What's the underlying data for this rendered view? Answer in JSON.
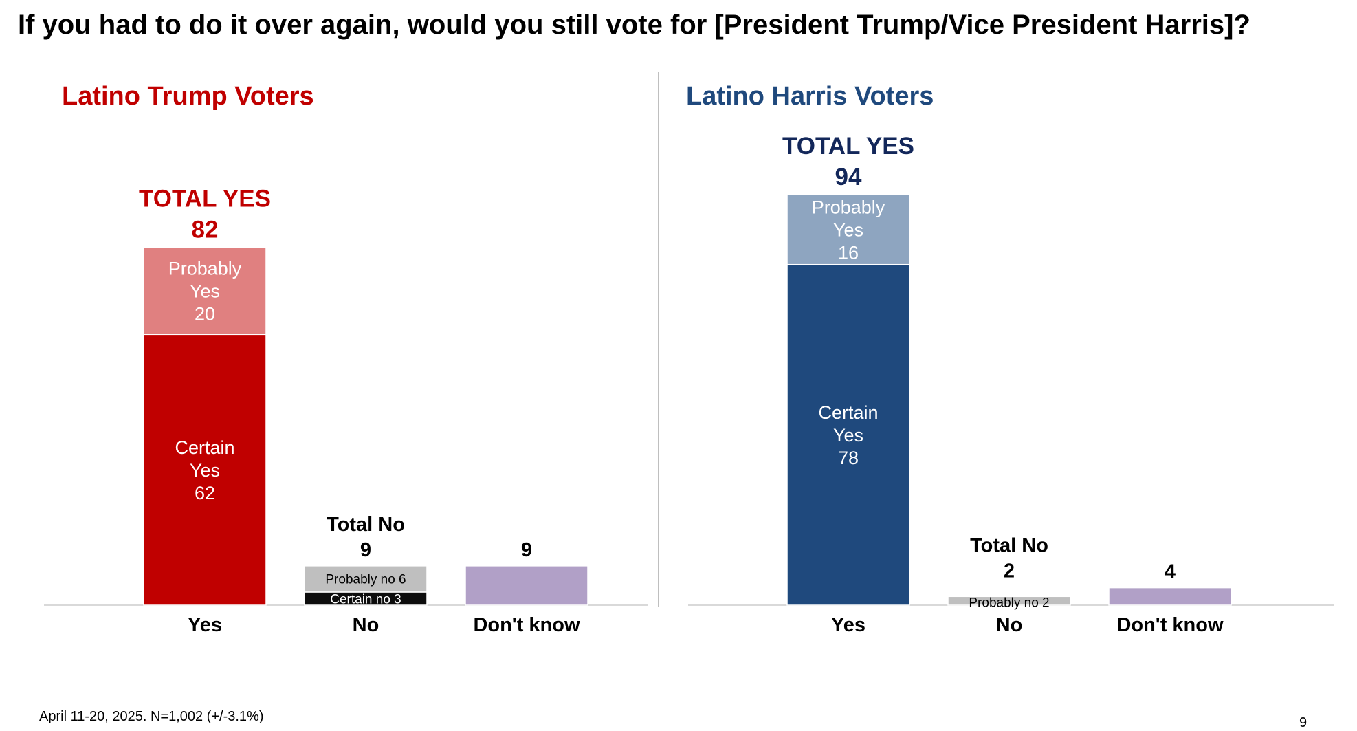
{
  "title": "If you had to do it over again, would you still vote for [President Trump/Vice President Harris]?",
  "footer": "April 11-20, 2025. N=1,002 (+/-3.1%)",
  "page_number": "9",
  "chart_data": [
    {
      "type": "bar",
      "panel": "left",
      "title": "Latino Trump Voters",
      "title_color": "#c00000",
      "total_color": "#c00000",
      "categories": [
        "Yes",
        "No",
        "Don't know"
      ],
      "ylim": [
        0,
        100
      ],
      "bars": [
        {
          "category": "Yes",
          "top_label_lines": [
            "TOTAL YES",
            "82"
          ],
          "segments": [
            {
              "name": "Certain Yes",
              "label_lines": [
                "Certain",
                "Yes",
                "62"
              ],
              "value": 62,
              "color": "#c00000",
              "text_color": "#ffffff",
              "label_mode": "inside"
            },
            {
              "name": "Probably Yes",
              "label_lines": [
                "Probably",
                "Yes",
                "20"
              ],
              "value": 20,
              "color": "#e08080",
              "text_color": "#ffffff",
              "label_mode": "inside"
            }
          ]
        },
        {
          "category": "No",
          "top_label_lines": [
            "Total No",
            "9"
          ],
          "segments": [
            {
              "name": "Certain no",
              "label_lines": [
                "Certain no 3"
              ],
              "value": 3,
              "color": "#0d0d0d",
              "text_color": "#ffffff",
              "label_mode": "inside"
            },
            {
              "name": "Probably no",
              "label_lines": [
                "Probably no 6"
              ],
              "value": 6,
              "color": "#bfbfbf",
              "text_color": "#000000",
              "label_mode": "inside"
            }
          ]
        },
        {
          "category": "Don't know",
          "top_label_lines": [
            "9"
          ],
          "segments": [
            {
              "name": "Don't know",
              "label_lines": [],
              "value": 9,
              "color": "#b1a0c7",
              "text_color": "#000000",
              "label_mode": "none"
            }
          ]
        }
      ]
    },
    {
      "type": "bar",
      "panel": "right",
      "title": "Latino Harris Voters",
      "title_color": "#1f497d",
      "total_color": "#13275a",
      "categories": [
        "Yes",
        "No",
        "Don't know"
      ],
      "ylim": [
        0,
        100
      ],
      "bars": [
        {
          "category": "Yes",
          "top_label_lines": [
            "TOTAL YES",
            "94"
          ],
          "segments": [
            {
              "name": "Certain Yes",
              "label_lines": [
                "Certain",
                "Yes",
                "78"
              ],
              "value": 78,
              "color": "#1f497d",
              "text_color": "#ffffff",
              "label_mode": "inside"
            },
            {
              "name": "Probably Yes",
              "label_lines": [
                "Probably",
                "Yes",
                "16"
              ],
              "value": 16,
              "color": "#8ea5c0",
              "text_color": "#ffffff",
              "label_mode": "inside"
            }
          ]
        },
        {
          "category": "No",
          "top_label_lines": [
            "Total No",
            "2"
          ],
          "segments": [
            {
              "name": "Probably no",
              "label_lines": [
                "Probably no 2"
              ],
              "value": 2,
              "color": "#bfbfbf",
              "text_color": "#000000",
              "label_mode": "overlay"
            }
          ]
        },
        {
          "category": "Don't know",
          "top_label_lines": [
            "4"
          ],
          "segments": [
            {
              "name": "Don't know",
              "label_lines": [],
              "value": 4,
              "color": "#b1a0c7",
              "text_color": "#000000",
              "label_mode": "none"
            }
          ]
        }
      ]
    }
  ]
}
